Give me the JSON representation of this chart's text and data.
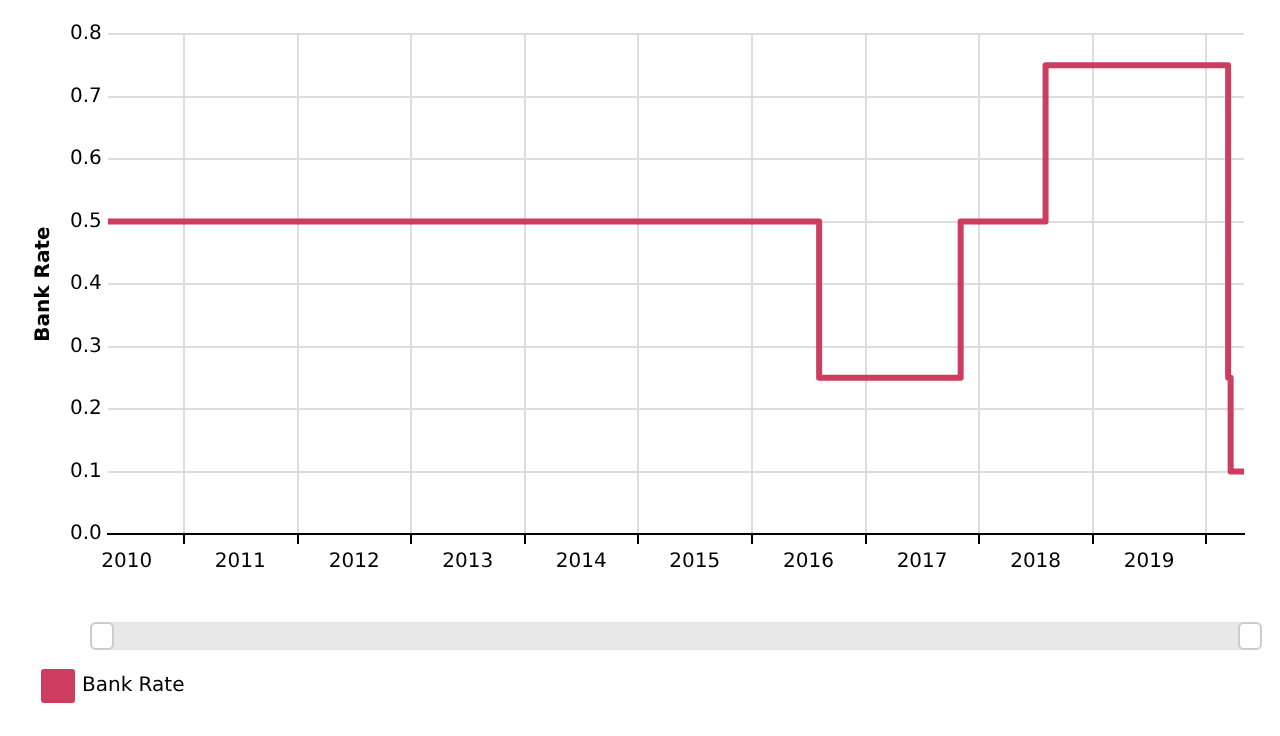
{
  "chart_data": {
    "type": "step",
    "ylabel": "Bank Rate",
    "x": [
      "2010-05-01",
      "2016-08-04",
      "2017-11-02",
      "2018-08-02",
      "2020-03-11",
      "2020-03-19",
      "2020-05-01"
    ],
    "series": [
      {
        "name": "Bank Rate",
        "color": "#cc3d5f",
        "values": [
          0.5,
          0.25,
          0.5,
          0.75,
          0.25,
          0.1,
          0.1
        ]
      }
    ],
    "xlim": [
      "2010-05-01",
      "2020-05-01"
    ],
    "xticks": [
      {
        "value": "2010-07-01",
        "label": "2010"
      },
      {
        "value": "2011-01-01",
        "label": null
      },
      {
        "value": "2011-07-01",
        "label": "2011"
      },
      {
        "value": "2012-01-01",
        "label": null
      },
      {
        "value": "2012-07-01",
        "label": "2012"
      },
      {
        "value": "2013-01-01",
        "label": null
      },
      {
        "value": "2013-07-01",
        "label": "2013"
      },
      {
        "value": "2014-01-01",
        "label": null
      },
      {
        "value": "2014-07-01",
        "label": "2014"
      },
      {
        "value": "2015-01-01",
        "label": null
      },
      {
        "value": "2015-07-01",
        "label": "2015"
      },
      {
        "value": "2016-01-01",
        "label": null
      },
      {
        "value": "2016-07-01",
        "label": "2016"
      },
      {
        "value": "2017-01-01",
        "label": null
      },
      {
        "value": "2017-07-01",
        "label": "2017"
      },
      {
        "value": "2018-01-01",
        "label": null
      },
      {
        "value": "2018-07-01",
        "label": "2018"
      },
      {
        "value": "2019-01-01",
        "label": null
      },
      {
        "value": "2019-07-01",
        "label": "2019"
      },
      {
        "value": "2020-01-01",
        "label": null
      }
    ],
    "ylim": [
      0,
      0.8
    ],
    "yticks": [
      {
        "value": 0,
        "label": "0.0"
      },
      0.1,
      0.2,
      0.3,
      0.4,
      0.5,
      0.6,
      0.7,
      0.8
    ],
    "grid": true,
    "legend": "bottom left",
    "marker": "none",
    "line_style": "solid"
  }
}
